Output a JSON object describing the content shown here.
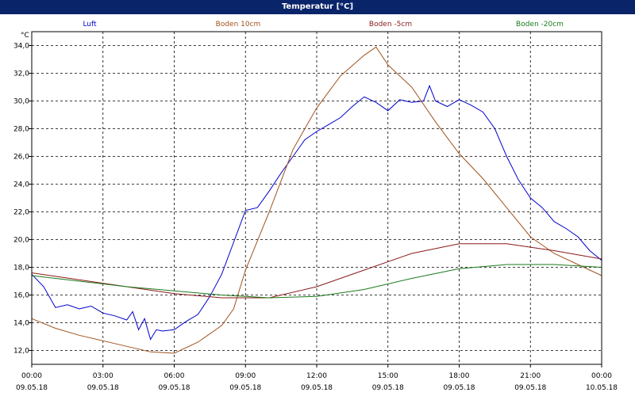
{
  "window": {
    "title": "Temperatur [°C]"
  },
  "chart_data": {
    "type": "line",
    "title": "Temperatur [°C]",
    "ylabel": "°C",
    "xlabel": "",
    "ylim": [
      11,
      35
    ],
    "yticks": [
      12,
      14,
      16,
      18,
      20,
      22,
      24,
      26,
      28,
      30,
      32,
      34
    ],
    "ytick_labels": [
      "12,0",
      "14,0",
      "16,0",
      "18,0",
      "20,0",
      "22,0",
      "24,0",
      "26,0",
      "28,0",
      "30,0",
      "32,0",
      "34,0"
    ],
    "xlim": [
      "2018-05-09 00:00",
      "2018-05-10 00:00"
    ],
    "xticks": [
      {
        "time": "00:00",
        "date": "09.05.18"
      },
      {
        "time": "03:00",
        "date": "09.05.18"
      },
      {
        "time": "06:00",
        "date": "09.05.18"
      },
      {
        "time": "09:00",
        "date": "09.05.18"
      },
      {
        "time": "12:00",
        "date": "09.05.18"
      },
      {
        "time": "15:00",
        "date": "09.05.18"
      },
      {
        "time": "18:00",
        "date": "09.05.18"
      },
      {
        "time": "21:00",
        "date": "09.05.18"
      },
      {
        "time": "00:00",
        "date": "10.05.18"
      }
    ],
    "grid": true,
    "legend_position": "top",
    "series": [
      {
        "name": "Luft",
        "color": "#0000cc",
        "points": [
          [
            "2018-05-09 00:00",
            17.5
          ],
          [
            "2018-05-09 00:30",
            16.6
          ],
          [
            "2018-05-09 01:00",
            15.1
          ],
          [
            "2018-05-09 01:30",
            15.3
          ],
          [
            "2018-05-09 02:00",
            15.0
          ],
          [
            "2018-05-09 02:30",
            15.2
          ],
          [
            "2018-05-09 03:00",
            14.7
          ],
          [
            "2018-05-09 03:30",
            14.5
          ],
          [
            "2018-05-09 04:00",
            14.2
          ],
          [
            "2018-05-09 04:15",
            14.8
          ],
          [
            "2018-05-09 04:30",
            13.5
          ],
          [
            "2018-05-09 04:45",
            14.3
          ],
          [
            "2018-05-09 05:00",
            12.8
          ],
          [
            "2018-05-09 05:15",
            13.5
          ],
          [
            "2018-05-09 05:30",
            13.4
          ],
          [
            "2018-05-09 06:00",
            13.5
          ],
          [
            "2018-05-09 06:30",
            14.1
          ],
          [
            "2018-05-09 07:00",
            14.6
          ],
          [
            "2018-05-09 07:30",
            15.9
          ],
          [
            "2018-05-09 08:00",
            17.5
          ],
          [
            "2018-05-09 08:30",
            19.8
          ],
          [
            "2018-05-09 09:00",
            22.1
          ],
          [
            "2018-05-09 09:30",
            22.3
          ],
          [
            "2018-05-09 10:00",
            23.5
          ],
          [
            "2018-05-09 10:30",
            24.8
          ],
          [
            "2018-05-09 11:00",
            26.0
          ],
          [
            "2018-05-09 11:30",
            27.2
          ],
          [
            "2018-05-09 12:00",
            27.8
          ],
          [
            "2018-05-09 12:30",
            28.3
          ],
          [
            "2018-05-09 13:00",
            28.8
          ],
          [
            "2018-05-09 13:30",
            29.6
          ],
          [
            "2018-05-09 14:00",
            30.3
          ],
          [
            "2018-05-09 14:30",
            29.9
          ],
          [
            "2018-05-09 15:00",
            29.3
          ],
          [
            "2018-05-09 15:30",
            30.1
          ],
          [
            "2018-05-09 16:00",
            29.9
          ],
          [
            "2018-05-09 16:30",
            30.0
          ],
          [
            "2018-05-09 16:45",
            31.1
          ],
          [
            "2018-05-09 17:00",
            30.0
          ],
          [
            "2018-05-09 17:30",
            29.6
          ],
          [
            "2018-05-09 18:00",
            30.1
          ],
          [
            "2018-05-09 18:30",
            29.7
          ],
          [
            "2018-05-09 19:00",
            29.2
          ],
          [
            "2018-05-09 19:30",
            28.0
          ],
          [
            "2018-05-09 20:00",
            26.0
          ],
          [
            "2018-05-09 20:30",
            24.3
          ],
          [
            "2018-05-09 21:00",
            23.0
          ],
          [
            "2018-05-09 21:30",
            22.3
          ],
          [
            "2018-05-09 22:00",
            21.3
          ],
          [
            "2018-05-09 22:30",
            20.8
          ],
          [
            "2018-05-09 23:00",
            20.2
          ],
          [
            "2018-05-09 23:30",
            19.2
          ],
          [
            "2018-05-10 00:00",
            18.5
          ]
        ]
      },
      {
        "name": "Boden 10cm",
        "color": "#a0521e",
        "points": [
          [
            "2018-05-09 00:00",
            14.3
          ],
          [
            "2018-05-09 01:00",
            13.6
          ],
          [
            "2018-05-09 02:00",
            13.1
          ],
          [
            "2018-05-09 03:00",
            12.7
          ],
          [
            "2018-05-09 04:00",
            12.3
          ],
          [
            "2018-05-09 05:00",
            11.9
          ],
          [
            "2018-05-09 06:00",
            11.8
          ],
          [
            "2018-05-09 07:00",
            12.6
          ],
          [
            "2018-05-09 08:00",
            13.8
          ],
          [
            "2018-05-09 08:30",
            15.0
          ],
          [
            "2018-05-09 09:00",
            17.8
          ],
          [
            "2018-05-09 10:00",
            22.0
          ],
          [
            "2018-05-09 11:00",
            26.5
          ],
          [
            "2018-05-09 12:00",
            29.5
          ],
          [
            "2018-05-09 13:00",
            31.8
          ],
          [
            "2018-05-09 14:00",
            33.3
          ],
          [
            "2018-05-09 14:30",
            33.9
          ],
          [
            "2018-05-09 15:00",
            32.6
          ],
          [
            "2018-05-09 16:00",
            31.0
          ],
          [
            "2018-05-09 17:00",
            28.5
          ],
          [
            "2018-05-09 18:00",
            26.2
          ],
          [
            "2018-05-09 19:00",
            24.4
          ],
          [
            "2018-05-09 20:00",
            22.3
          ],
          [
            "2018-05-09 21:00",
            20.2
          ],
          [
            "2018-05-09 22:00",
            19.0
          ],
          [
            "2018-05-09 23:00",
            18.2
          ],
          [
            "2018-05-10 00:00",
            17.4
          ]
        ]
      },
      {
        "name": "Boden -5cm",
        "color": "#8b1a1a",
        "points": [
          [
            "2018-05-09 00:00",
            17.6
          ],
          [
            "2018-05-09 02:00",
            17.1
          ],
          [
            "2018-05-09 04:00",
            16.6
          ],
          [
            "2018-05-09 06:00",
            16.1
          ],
          [
            "2018-05-09 08:00",
            15.8
          ],
          [
            "2018-05-09 10:00",
            15.8
          ],
          [
            "2018-05-09 12:00",
            16.6
          ],
          [
            "2018-05-09 14:00",
            17.8
          ],
          [
            "2018-05-09 16:00",
            19.0
          ],
          [
            "2018-05-09 18:00",
            19.7
          ],
          [
            "2018-05-09 20:00",
            19.7
          ],
          [
            "2018-05-09 22:00",
            19.2
          ],
          [
            "2018-05-10 00:00",
            18.6
          ]
        ]
      },
      {
        "name": "Boden -20cm",
        "color": "#1a7a1a",
        "points": [
          [
            "2018-05-09 00:00",
            17.4
          ],
          [
            "2018-05-09 02:00",
            17.0
          ],
          [
            "2018-05-09 04:00",
            16.6
          ],
          [
            "2018-05-09 06:00",
            16.3
          ],
          [
            "2018-05-09 08:00",
            16.0
          ],
          [
            "2018-05-09 10:00",
            15.8
          ],
          [
            "2018-05-09 12:00",
            15.9
          ],
          [
            "2018-05-09 14:00",
            16.4
          ],
          [
            "2018-05-09 16:00",
            17.2
          ],
          [
            "2018-05-09 18:00",
            17.9
          ],
          [
            "2018-05-09 20:00",
            18.2
          ],
          [
            "2018-05-09 22:00",
            18.2
          ],
          [
            "2018-05-10 00:00",
            18.0
          ]
        ]
      }
    ]
  }
}
